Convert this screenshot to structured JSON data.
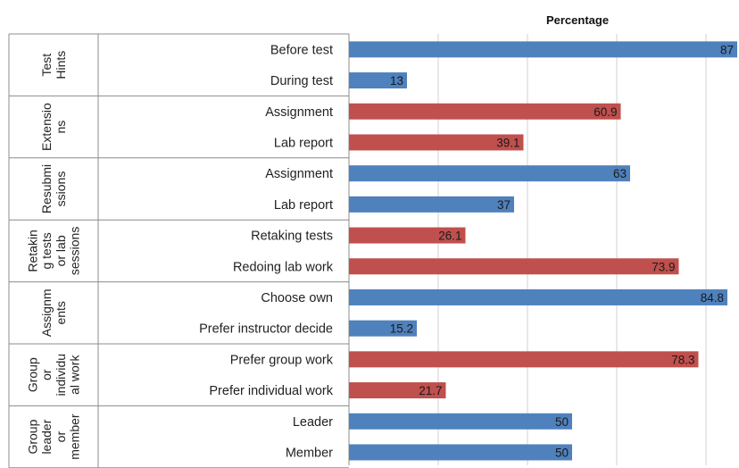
{
  "chart_data": {
    "type": "bar",
    "orientation": "horizontal",
    "title": "Percentage",
    "xlim": [
      0,
      87
    ],
    "grid": true,
    "colors": {
      "blue": "#4f81bd",
      "red": "#c0504d"
    },
    "groups": [
      {
        "label": "Test Hints",
        "lines": [
          "Test",
          "Hints"
        ],
        "categories": [
          {
            "label": "Before test",
            "value": 87,
            "value_label": "87",
            "color": "blue"
          },
          {
            "label": "During test",
            "value": 13,
            "value_label": "13",
            "color": "blue"
          }
        ]
      },
      {
        "label": "Extensions",
        "lines": [
          "Extensio",
          "ns"
        ],
        "categories": [
          {
            "label": "Assignment",
            "value": 60.9,
            "value_label": "60.9",
            "color": "red"
          },
          {
            "label": "Lab report",
            "value": 39.1,
            "value_label": "39.1",
            "color": "red"
          }
        ]
      },
      {
        "label": "Resubmissions",
        "lines": [
          "Resubmi",
          "ssions"
        ],
        "categories": [
          {
            "label": "Assignment",
            "value": 63,
            "value_label": "63",
            "color": "blue"
          },
          {
            "label": "Lab report",
            "value": 37,
            "value_label": "37",
            "color": "blue"
          }
        ]
      },
      {
        "label": "Retaking tests or lab sessions",
        "lines": [
          "Retakin",
          "g tests",
          "or lab",
          "sessions"
        ],
        "categories": [
          {
            "label": "Retaking tests",
            "value": 26.1,
            "value_label": "26.1",
            "color": "red"
          },
          {
            "label": "Redoing lab work",
            "value": 73.9,
            "value_label": "73.9",
            "color": "red"
          }
        ]
      },
      {
        "label": "Assignments",
        "lines": [
          "Assignm",
          "ents"
        ],
        "categories": [
          {
            "label": "Choose own",
            "value": 84.8,
            "value_label": "84.8",
            "color": "blue"
          },
          {
            "label": "Prefer instructor decide",
            "value": 15.2,
            "value_label": "15.2",
            "color": "blue"
          }
        ]
      },
      {
        "label": "Group or individual work",
        "lines": [
          "Group",
          "or",
          "individu",
          "al work"
        ],
        "categories": [
          {
            "label": "Prefer group work",
            "value": 78.3,
            "value_label": "78.3",
            "color": "red"
          },
          {
            "label": "Prefer individual work",
            "value": 21.7,
            "value_label": "21.7",
            "color": "red"
          }
        ]
      },
      {
        "label": "Group leader or member",
        "lines": [
          "Group",
          "leader",
          "or",
          "member"
        ],
        "categories": [
          {
            "label": "Leader",
            "value": 50,
            "value_label": "50",
            "color": "blue"
          },
          {
            "label": "Member",
            "value": 50,
            "value_label": "50",
            "color": "blue"
          }
        ]
      }
    ]
  }
}
